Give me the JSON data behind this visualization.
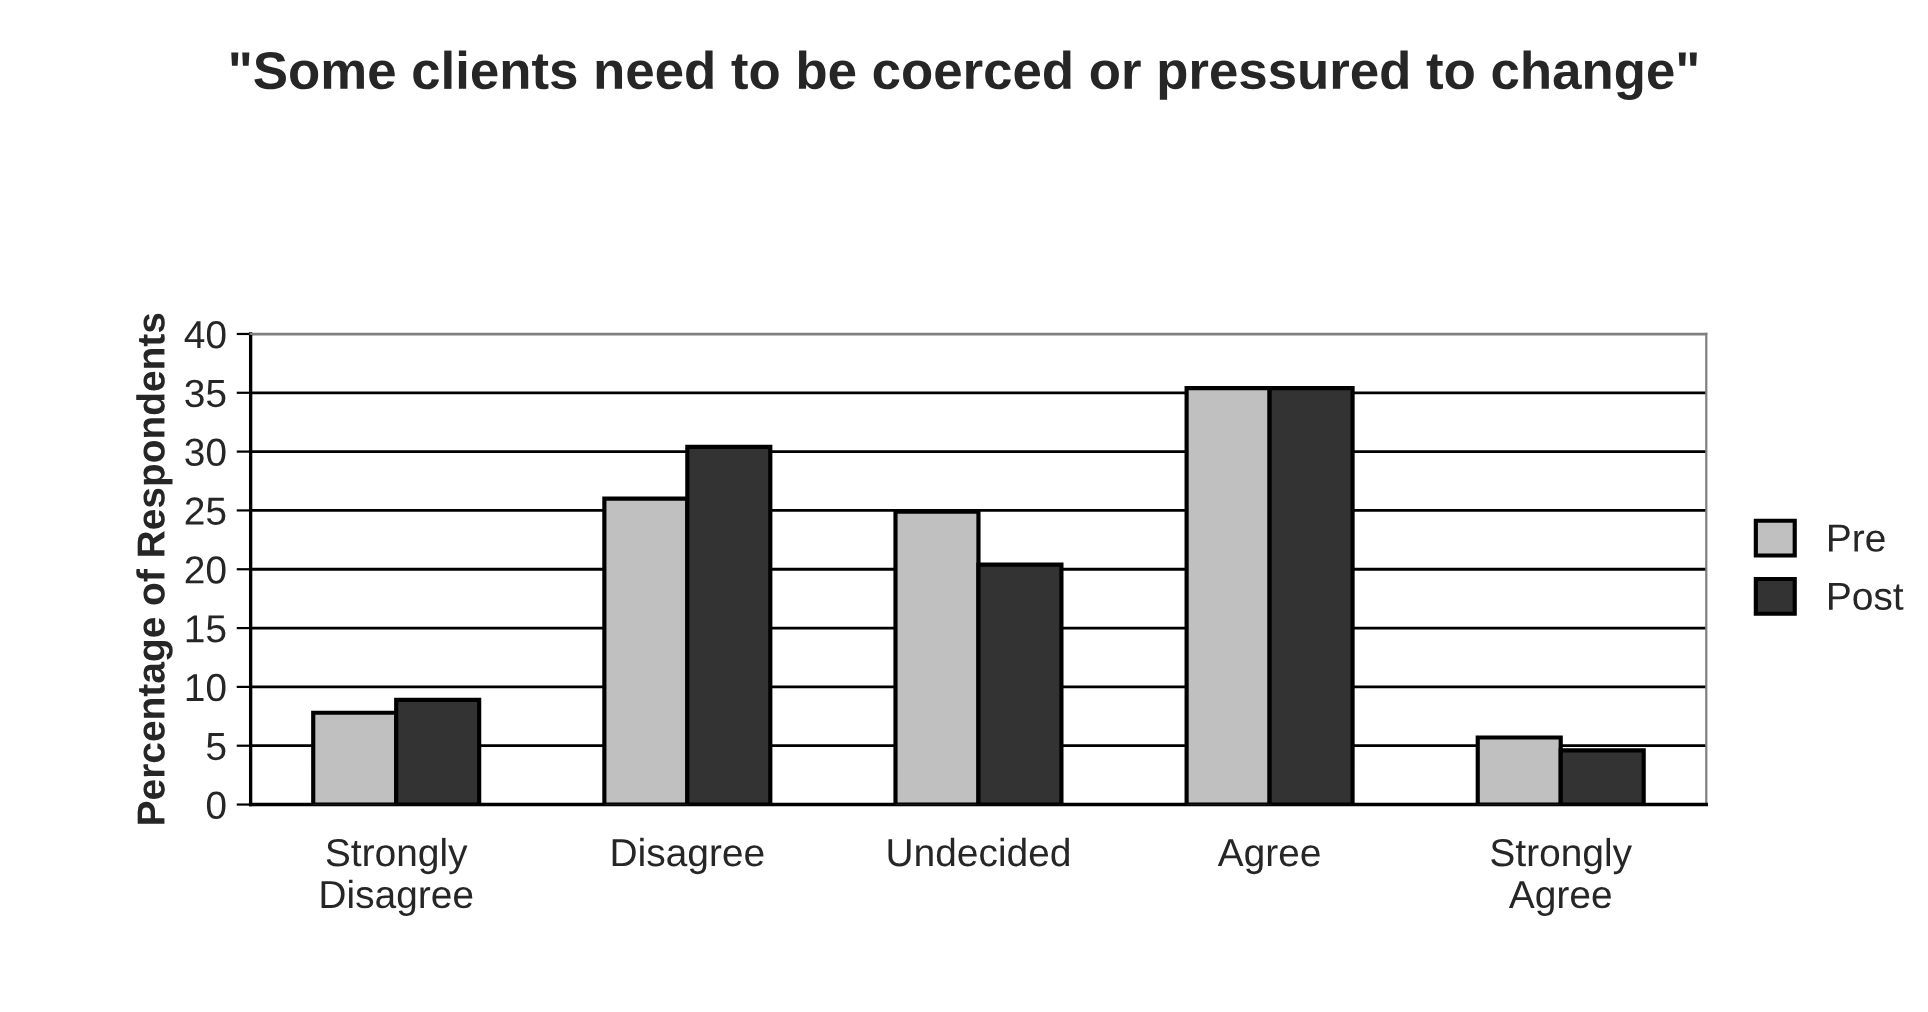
{
  "chart_data": {
    "type": "bar",
    "title": "\"Some clients need to be coerced or pressured to change\"",
    "ylabel": "Percentage of Respondents",
    "categories": [
      "Strongly\nDisagree",
      "Disagree",
      "Undecided",
      "Agree",
      "Strongly\nAgree"
    ],
    "series": [
      {
        "name": "Pre",
        "color": "#c0c0c0",
        "values": [
          7.8,
          26.0,
          24.9,
          35.4,
          5.7
        ]
      },
      {
        "name": "Post",
        "color": "#333333",
        "values": [
          8.9,
          30.4,
          20.4,
          35.4,
          4.6
        ]
      }
    ],
    "ylim": [
      0,
      40
    ],
    "yticks": [
      0,
      5,
      10,
      15,
      20,
      25,
      30,
      35,
      40
    ],
    "grid": "y",
    "legend": "right"
  }
}
